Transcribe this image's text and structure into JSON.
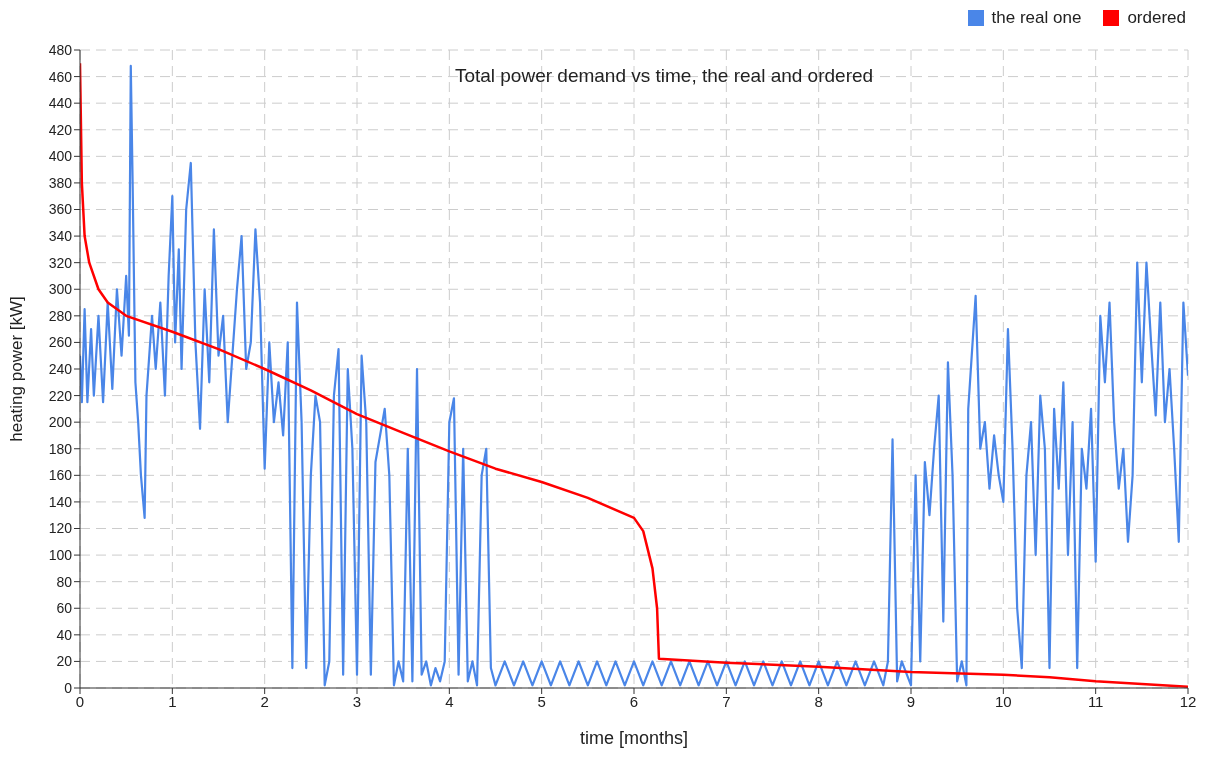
{
  "chart_data": {
    "type": "line",
    "title": "Total power demand vs time, the real and ordered",
    "xlabel": "time [months]",
    "ylabel": "heating power [kW]",
    "xlim": [
      0,
      12
    ],
    "xticks": [
      0,
      1,
      2,
      3,
      4,
      5,
      6,
      7,
      8,
      9,
      10,
      11,
      12
    ],
    "ylim": [
      0,
      480
    ],
    "yticks": [
      0,
      20,
      40,
      60,
      80,
      100,
      120,
      140,
      160,
      180,
      200,
      220,
      240,
      260,
      280,
      300,
      320,
      340,
      360,
      380,
      400,
      420,
      440,
      460,
      480
    ],
    "grid": true,
    "legend": "top right",
    "marker": "none",
    "line_style": "solid",
    "series": [
      {
        "name": "the real one",
        "color": "#4a86e8",
        "x": [
          0,
          0.02,
          0.05,
          0.08,
          0.12,
          0.15,
          0.2,
          0.25,
          0.3,
          0.35,
          0.4,
          0.45,
          0.5,
          0.53,
          0.55,
          0.57,
          0.6,
          0.63,
          0.66,
          0.7,
          0.72,
          0.78,
          0.82,
          0.87,
          0.92,
          0.96,
          1.0,
          1.03,
          1.07,
          1.1,
          1.15,
          1.2,
          1.25,
          1.3,
          1.35,
          1.4,
          1.45,
          1.5,
          1.55,
          1.6,
          1.65,
          1.7,
          1.75,
          1.8,
          1.85,
          1.9,
          1.95,
          2.0,
          2.05,
          2.1,
          2.15,
          2.2,
          2.25,
          2.3,
          2.35,
          2.4,
          2.45,
          2.5,
          2.55,
          2.6,
          2.65,
          2.7,
          2.75,
          2.8,
          2.85,
          2.9,
          2.95,
          3.0,
          3.05,
          3.1,
          3.15,
          3.2,
          3.3,
          3.35,
          3.4,
          3.45,
          3.5,
          3.55,
          3.6,
          3.65,
          3.7,
          3.75,
          3.8,
          3.85,
          3.9,
          3.95,
          4.0,
          4.05,
          4.1,
          4.15,
          4.2,
          4.25,
          4.3,
          4.35,
          4.4,
          4.45,
          4.5,
          4.6,
          4.7,
          4.8,
          4.9,
          5.0,
          5.1,
          5.2,
          5.3,
          5.4,
          5.5,
          5.6,
          5.7,
          5.8,
          5.9,
          6.0,
          6.1,
          6.2,
          6.3,
          6.4,
          6.5,
          6.6,
          6.7,
          6.8,
          6.9,
          7.0,
          7.1,
          7.2,
          7.3,
          7.4,
          7.5,
          7.6,
          7.7,
          7.8,
          7.9,
          8.0,
          8.1,
          8.2,
          8.3,
          8.4,
          8.5,
          8.6,
          8.7,
          8.75,
          8.8,
          8.85,
          8.9,
          9.0,
          9.05,
          9.1,
          9.15,
          9.2,
          9.25,
          9.3,
          9.35,
          9.4,
          9.45,
          9.5,
          9.55,
          9.6,
          9.62,
          9.7,
          9.75,
          9.8,
          9.85,
          9.9,
          9.95,
          10.0,
          10.05,
          10.1,
          10.15,
          10.2,
          10.25,
          10.3,
          10.35,
          10.4,
          10.45,
          10.5,
          10.55,
          10.6,
          10.65,
          10.7,
          10.75,
          10.8,
          10.85,
          10.9,
          10.95,
          11.0,
          11.05,
          11.1,
          11.15,
          11.2,
          11.25,
          11.3,
          11.35,
          11.4,
          11.45,
          11.5,
          11.55,
          11.6,
          11.65,
          11.7,
          11.75,
          11.8,
          11.85,
          11.9,
          11.95,
          12.0
        ],
        "values": [
          250,
          215,
          285,
          215,
          270,
          220,
          280,
          215,
          290,
          225,
          300,
          250,
          310,
          265,
          468,
          380,
          230,
          200,
          160,
          128,
          220,
          280,
          240,
          290,
          220,
          310,
          370,
          260,
          330,
          240,
          360,
          395,
          260,
          195,
          300,
          230,
          345,
          250,
          280,
          200,
          250,
          300,
          340,
          240,
          260,
          345,
          290,
          165,
          260,
          200,
          230,
          190,
          260,
          15,
          290,
          200,
          15,
          160,
          220,
          200,
          2,
          20,
          220,
          255,
          10,
          240,
          180,
          10,
          250,
          200,
          10,
          170,
          210,
          160,
          2,
          20,
          5,
          180,
          5,
          240,
          10,
          20,
          2,
          15,
          5,
          20,
          200,
          218,
          10,
          180,
          5,
          20,
          2,
          160,
          180,
          15,
          2,
          20,
          2,
          20,
          2,
          20,
          2,
          20,
          2,
          20,
          2,
          20,
          2,
          20,
          2,
          20,
          2,
          20,
          2,
          20,
          2,
          20,
          2,
          20,
          2,
          20,
          2,
          20,
          2,
          20,
          2,
          20,
          2,
          20,
          2,
          20,
          2,
          20,
          2,
          20,
          2,
          20,
          2,
          20,
          187,
          5,
          20,
          2,
          160,
          20,
          170,
          130,
          180,
          220,
          50,
          245,
          160,
          5,
          20,
          2,
          210,
          295,
          180,
          200,
          150,
          190,
          160,
          140,
          270,
          180,
          60,
          15,
          160,
          200,
          100,
          220,
          180,
          15,
          210,
          150,
          230,
          100,
          200,
          15,
          180,
          150,
          210,
          95,
          280,
          230,
          290,
          200,
          150,
          180,
          110,
          160,
          320,
          230,
          320,
          260,
          205,
          290,
          200,
          240,
          180,
          110,
          290,
          235
        ]
      },
      {
        "name": "ordered",
        "color": "#ff0000",
        "x": [
          0,
          0.02,
          0.05,
          0.1,
          0.2,
          0.3,
          0.5,
          1.0,
          1.5,
          2.0,
          2.5,
          3.0,
          3.5,
          4.0,
          4.5,
          5.0,
          5.5,
          6.0,
          6.1,
          6.2,
          6.25,
          6.27,
          6.5,
          7.0,
          8.0,
          9.0,
          10.0,
          10.5,
          11.0,
          11.5,
          12.0
        ],
        "values": [
          470,
          380,
          340,
          320,
          300,
          290,
          280,
          268,
          255,
          240,
          224,
          206,
          192,
          178,
          165,
          155,
          143,
          128,
          118,
          90,
          60,
          22,
          21,
          19,
          16,
          12,
          10,
          8,
          5,
          3,
          1
        ]
      }
    ]
  }
}
